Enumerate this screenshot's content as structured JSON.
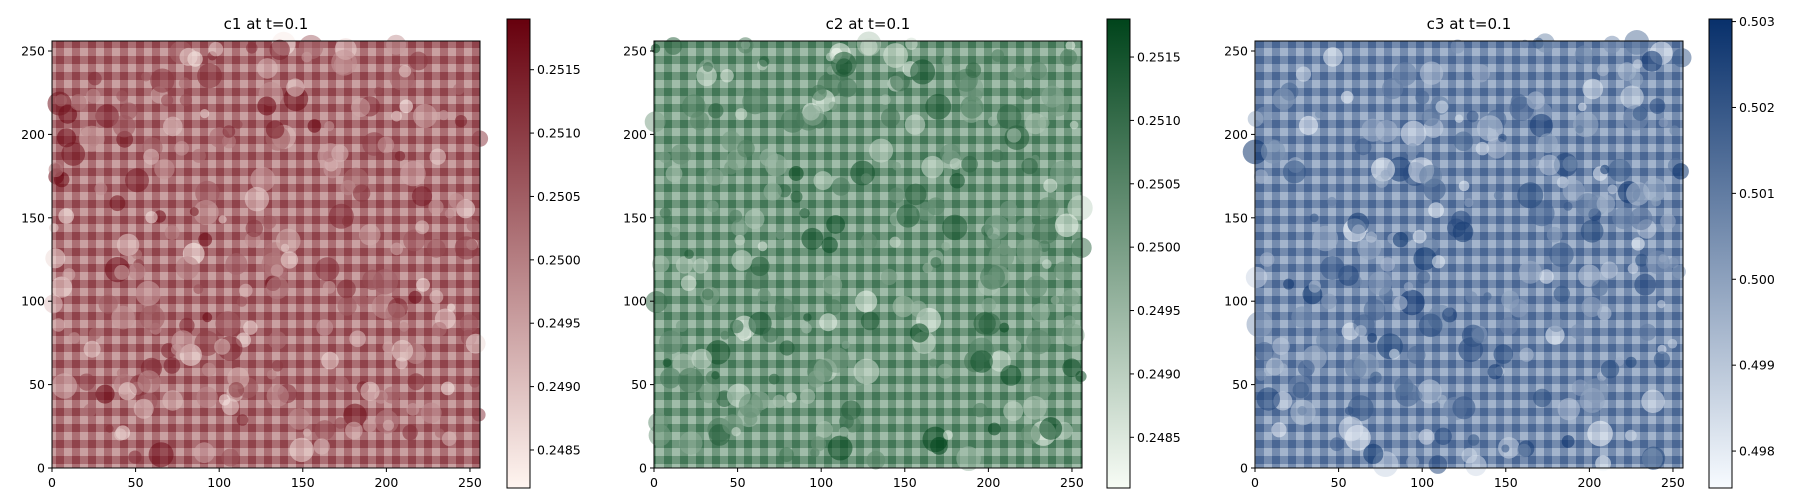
{
  "chart_data": [
    {
      "type": "heatmap",
      "title": "c1 at t=0.1",
      "colormap": "Reds",
      "color_low": "#fff5f0",
      "color_high": "#67000d",
      "xlim": [
        0,
        256
      ],
      "ylim": [
        0,
        256
      ],
      "xticks": [
        0,
        50,
        100,
        150,
        200,
        250
      ],
      "yticks": [
        0,
        50,
        100,
        150,
        200,
        250
      ],
      "clim": [
        0.2482,
        0.2519
      ],
      "colorbar_ticks": [
        "0.2485",
        "0.2490",
        "0.2495",
        "0.2500",
        "0.2505",
        "0.2510",
        "0.2515"
      ],
      "grid": false
    },
    {
      "type": "heatmap",
      "title": "c2 at t=0.1",
      "colormap": "Greens",
      "color_low": "#f7fcf5",
      "color_high": "#00441b",
      "xlim": [
        0,
        256
      ],
      "ylim": [
        0,
        256
      ],
      "xticks": [
        0,
        50,
        100,
        150,
        200,
        250
      ],
      "yticks": [
        0,
        50,
        100,
        150,
        200,
        250
      ],
      "clim": [
        0.2481,
        0.2518
      ],
      "colorbar_ticks": [
        "0.2485",
        "0.2490",
        "0.2495",
        "0.2500",
        "0.2505",
        "0.2510",
        "0.2515"
      ],
      "grid": false
    },
    {
      "type": "heatmap",
      "title": "c3 at t=0.1",
      "colormap": "Blues",
      "color_low": "#f7fbff",
      "color_high": "#08306b",
      "xlim": [
        0,
        256
      ],
      "ylim": [
        0,
        256
      ],
      "xticks": [
        0,
        50,
        100,
        150,
        200,
        250
      ],
      "yticks": [
        0,
        50,
        100,
        150,
        200,
        250
      ],
      "clim": [
        0.49757,
        0.50303
      ],
      "colorbar_ticks": [
        "0.498",
        "0.499",
        "0.500",
        "0.501",
        "0.502",
        "0.503"
      ],
      "grid": false
    }
  ]
}
